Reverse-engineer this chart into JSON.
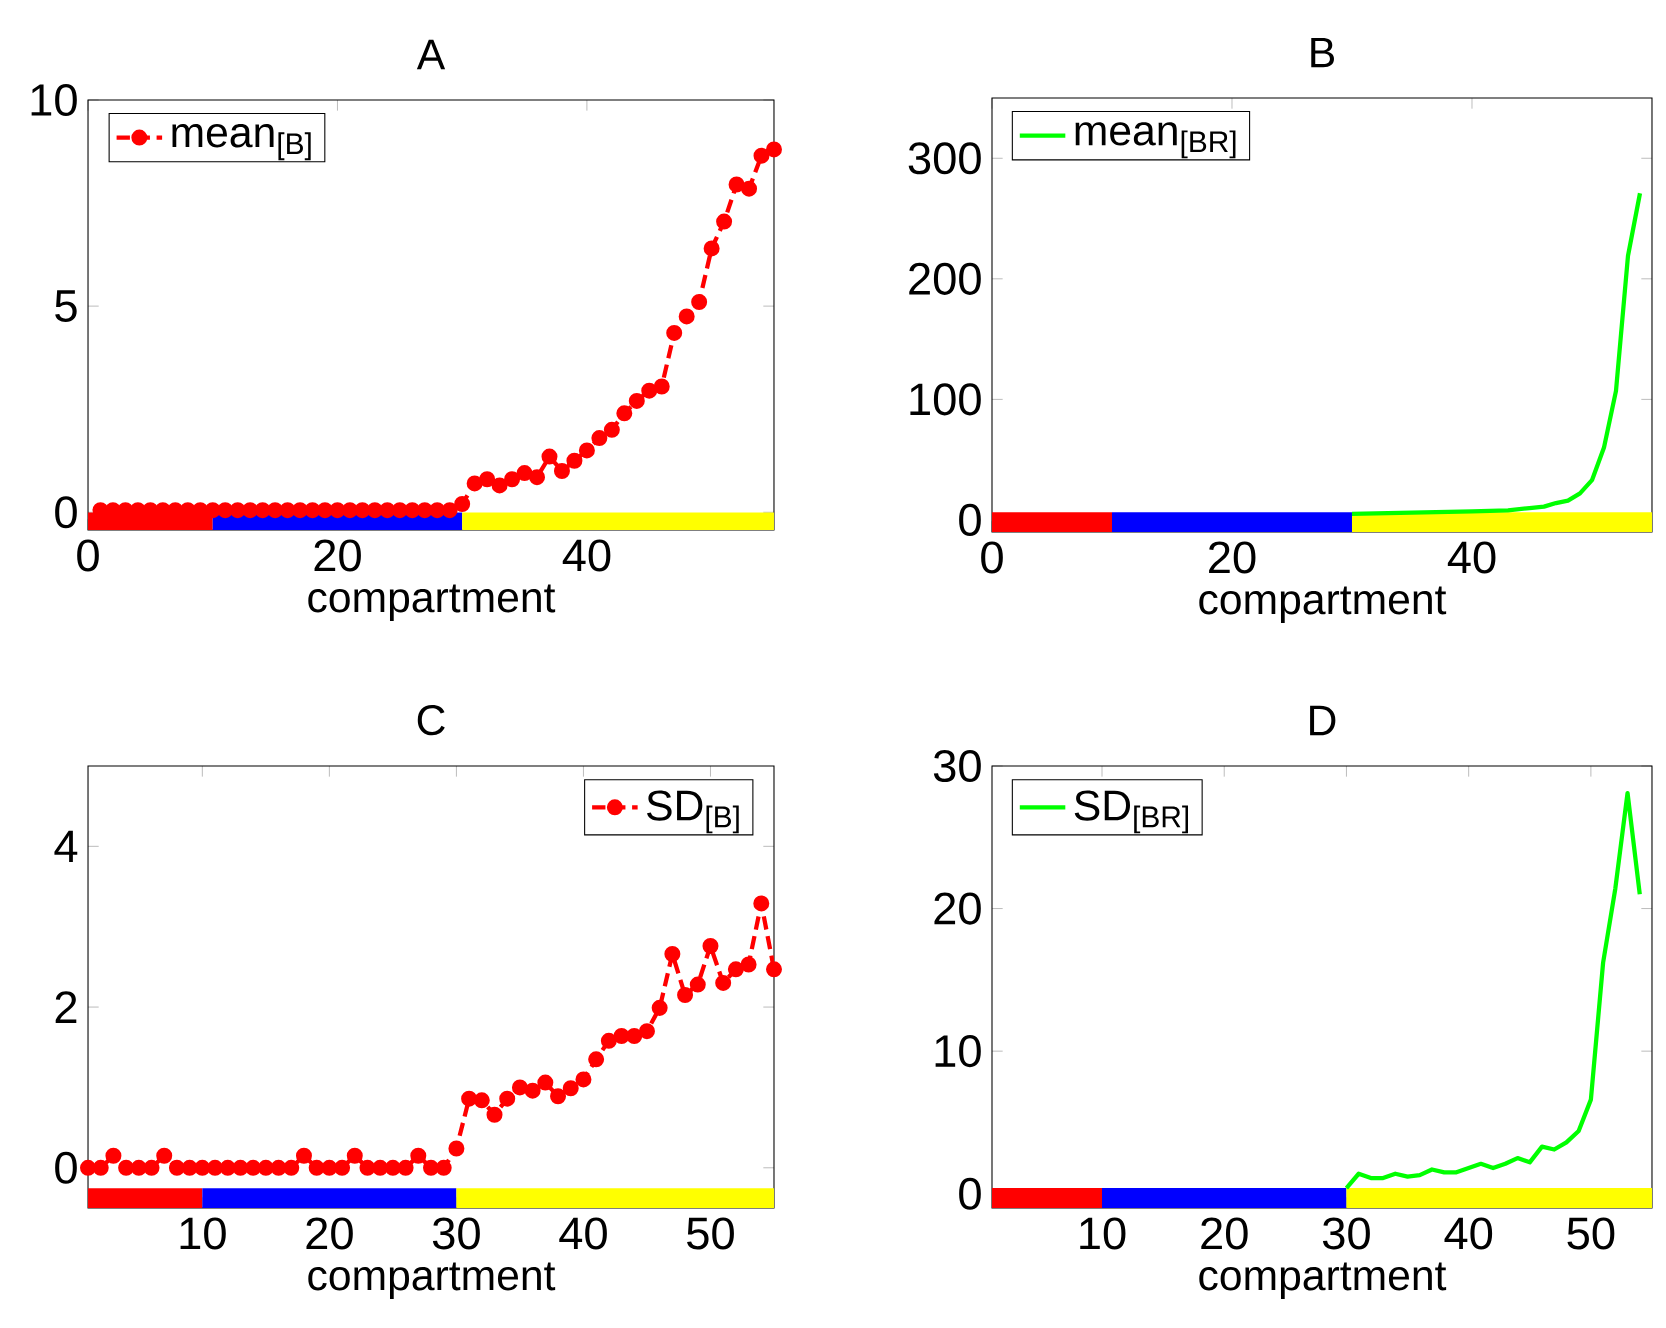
{
  "chart_data": [
    {
      "type": "line",
      "title": "A",
      "xlabel": "compartment",
      "xlim": [
        0,
        55
      ],
      "ylim": [
        -0.43,
        10
      ],
      "xticks": [
        0,
        20,
        40
      ],
      "yticks": [
        0,
        5,
        10
      ],
      "legend": "top left",
      "series": [
        {
          "color": "#ff0000",
          "x": [
            0,
            10
          ],
          "values": [
            -0.25,
            -0.25
          ]
        },
        {
          "color": "#0000ff",
          "x": [
            10,
            30
          ],
          "values": [
            -0.25,
            -0.25
          ]
        },
        {
          "color": "#ffff00",
          "x": [
            30,
            55
          ],
          "values": [
            -0.25,
            -0.25
          ]
        },
        {
          "name": "mean$_{[B]}$",
          "color": "#ff0000",
          "marker": "circle",
          "line_style": "dashed",
          "x": [
            1,
            2,
            3,
            4,
            5,
            6,
            7,
            8,
            9,
            10,
            11,
            12,
            13,
            14,
            15,
            16,
            17,
            18,
            19,
            20,
            21,
            22,
            23,
            24,
            25,
            26,
            27,
            28,
            29,
            30,
            31,
            32,
            33,
            34,
            35,
            36,
            37,
            38,
            39,
            40,
            41,
            42,
            43,
            44,
            45,
            46,
            47,
            48,
            49,
            50,
            51,
            52,
            53,
            54,
            55
          ],
          "values": [
            0.05,
            0.05,
            0.05,
            0.05,
            0.05,
            0.05,
            0.05,
            0.05,
            0.05,
            0.05,
            0.05,
            0.05,
            0.05,
            0.05,
            0.05,
            0.05,
            0.05,
            0.05,
            0.05,
            0.05,
            0.05,
            0.05,
            0.05,
            0.05,
            0.05,
            0.05,
            0.05,
            0.05,
            0.05,
            0.2,
            0.7,
            0.8,
            0.65,
            0.8,
            0.95,
            0.85,
            1.35,
            1.0,
            1.25,
            1.5,
            1.8,
            2.0,
            2.4,
            2.7,
            2.95,
            3.05,
            4.35,
            4.75,
            5.1,
            6.4,
            7.05,
            7.95,
            7.85,
            8.65,
            8.8
          ]
        }
      ]
    },
    {
      "type": "line",
      "title": "B",
      "xlabel": "compartment",
      "xlim": [
        0,
        55
      ],
      "ylim": [
        -10,
        350
      ],
      "xticks": [
        0,
        20,
        40
      ],
      "yticks": [
        0,
        100,
        200,
        300
      ],
      "legend": "top left",
      "series": [
        {
          "color": "#ff0000",
          "x": [
            0,
            10
          ],
          "values": [
            -2,
            -2
          ]
        },
        {
          "color": "#0000ff",
          "x": [
            10,
            30
          ],
          "values": [
            -2,
            -2
          ]
        },
        {
          "color": "#ffff00",
          "x": [
            30,
            55
          ],
          "values": [
            -2,
            -2
          ]
        },
        {
          "name": "mean$_{[BR]}$",
          "color": "#00ff00",
          "x": [
            30,
            35,
            40,
            43,
            45,
            46,
            47,
            48,
            49,
            50,
            51,
            52,
            53,
            54
          ],
          "values": [
            5,
            6,
            7,
            8,
            10,
            11,
            14,
            16,
            22,
            33,
            60,
            107,
            219,
            271
          ]
        }
      ]
    },
    {
      "type": "line",
      "title": "C",
      "xlabel": "compartment",
      "xlim": [
        1,
        55
      ],
      "ylim": [
        -0.5,
        5
      ],
      "xticks": [
        10,
        20,
        30,
        40,
        50
      ],
      "yticks": [
        0,
        2,
        4
      ],
      "legend": "top right",
      "series": [
        {
          "color": "#ff0000",
          "x": [
            1,
            10
          ],
          "values": [
            -0.38,
            -0.38
          ]
        },
        {
          "color": "#0000ff",
          "x": [
            10,
            30
          ],
          "values": [
            -0.38,
            -0.38
          ]
        },
        {
          "color": "#ffff00",
          "x": [
            30,
            55
          ],
          "values": [
            -0.38,
            -0.38
          ]
        },
        {
          "name": "SD$_{[B]}$",
          "color": "#ff0000",
          "marker": "circle",
          "line_style": "dashed",
          "x": [
            1,
            2,
            3,
            4,
            5,
            6,
            7,
            8,
            9,
            10,
            11,
            12,
            13,
            14,
            15,
            16,
            17,
            18,
            19,
            20,
            21,
            22,
            23,
            24,
            25,
            26,
            27,
            28,
            29,
            30,
            31,
            32,
            33,
            34,
            35,
            36,
            37,
            38,
            39,
            40,
            41,
            42,
            43,
            44,
            45,
            46,
            47,
            48,
            49,
            50,
            51,
            52,
            53,
            54,
            55
          ],
          "values": [
            0,
            0,
            0.15,
            0,
            0,
            0,
            0.15,
            0,
            0,
            0,
            0,
            0,
            0,
            0,
            0,
            0,
            0,
            0.15,
            0,
            0,
            0,
            0.15,
            0,
            0,
            0,
            0,
            0.15,
            0,
            0,
            0.24,
            0.86,
            0.84,
            0.66,
            0.86,
            1.0,
            0.96,
            1.06,
            0.89,
            0.99,
            1.1,
            1.35,
            1.58,
            1.64,
            1.64,
            1.7,
            1.99,
            2.66,
            2.15,
            2.28,
            2.76,
            2.3,
            2.47,
            2.53,
            3.29,
            2.47
          ]
        }
      ]
    },
    {
      "type": "line",
      "title": "D",
      "xlabel": "compartment",
      "xlim": [
        1,
        55
      ],
      "ylim": [
        -1,
        30
      ],
      "xticks": [
        10,
        20,
        30,
        40,
        50
      ],
      "yticks": [
        0,
        10,
        20,
        30
      ],
      "legend": "top left",
      "series": [
        {
          "color": "#ff0000",
          "x": [
            1,
            10
          ],
          "values": [
            -0.3,
            -0.3
          ]
        },
        {
          "color": "#0000ff",
          "x": [
            10,
            30
          ],
          "values": [
            -0.3,
            -0.3
          ]
        },
        {
          "color": "#ffff00",
          "x": [
            30,
            55
          ],
          "values": [
            -0.3,
            -0.3
          ]
        },
        {
          "name": "SD$_{[BR]}$",
          "color": "#00ff00",
          "x": [
            30,
            31,
            32,
            33,
            34,
            35,
            36,
            37,
            38,
            39,
            40,
            41,
            42,
            43,
            44,
            45,
            46,
            47,
            48,
            49,
            50,
            51,
            52,
            53,
            54
          ],
          "values": [
            0.4,
            1.4,
            1.1,
            1.1,
            1.4,
            1.2,
            1.3,
            1.7,
            1.5,
            1.5,
            1.8,
            2.1,
            1.8,
            2.1,
            2.5,
            2.2,
            3.3,
            3.1,
            3.6,
            4.4,
            6.6,
            16.2,
            21.4,
            28.1,
            21
          ]
        }
      ]
    }
  ]
}
